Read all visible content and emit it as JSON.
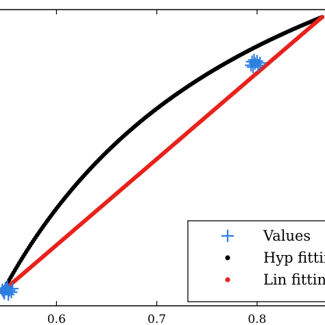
{
  "chart_data": {
    "type": "scatter",
    "xlim": [
      0.53,
      0.865
    ],
    "ylim": [
      0.0,
      1.0
    ],
    "x_ticks": [
      0.6,
      0.7,
      0.8
    ],
    "x_tick_labels": [
      "0.6",
      "0.7",
      "0.8"
    ],
    "grid": false,
    "legend_position": "bottom-right",
    "series": [
      {
        "name": "Values",
        "marker": "plus",
        "color": "#2b7fe0",
        "points": [
          [
            0.547,
            0.048
          ],
          [
            0.55,
            0.056
          ],
          [
            0.553,
            0.052
          ],
          [
            0.548,
            0.042
          ],
          [
            0.551,
            0.064
          ],
          [
            0.555,
            0.046
          ],
          [
            0.549,
            0.06
          ],
          [
            0.546,
            0.054
          ],
          [
            0.552,
            0.038
          ],
          [
            0.556,
            0.058
          ],
          [
            0.795,
            0.824
          ],
          [
            0.798,
            0.818
          ],
          [
            0.801,
            0.812
          ],
          [
            0.794,
            0.812
          ],
          [
            0.797,
            0.83
          ],
          [
            0.8,
            0.826
          ],
          [
            0.803,
            0.82
          ],
          [
            0.796,
            0.806
          ]
        ]
      },
      {
        "name": "Hyp fitting",
        "marker": "dot",
        "color": "#000000",
        "curve": "hyperbolic",
        "x_range": [
          0.546,
          0.865
        ],
        "y_start": 0.045,
        "y_end": 0.975
      },
      {
        "name": "Lin fitting",
        "marker": "dot",
        "color": "#e8221c",
        "curve": "linear",
        "x_range": [
          0.546,
          0.865
        ],
        "y_start": 0.048,
        "y_end": 0.975
      }
    ]
  }
}
